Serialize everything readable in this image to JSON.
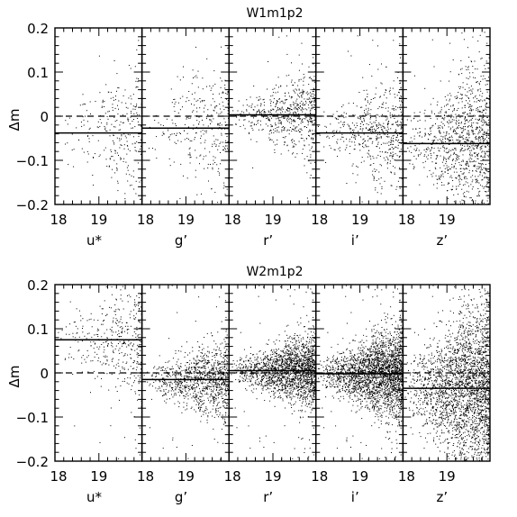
{
  "chart_data": [
    {
      "type": "scatter",
      "title": "W1m1p2",
      "ylabel": "Δm",
      "ylim": [
        -0.2,
        0.2
      ],
      "yticks": [
        -0.2,
        -0.1,
        0,
        0.1,
        0.2
      ],
      "ytick_labels": [
        "−0.2",
        "−0.1",
        "0",
        "0.1",
        "0.2"
      ],
      "xlim": [
        18,
        19.98
      ],
      "xtick_labels": [
        "18",
        "19"
      ],
      "reference_line": 0,
      "panels": [
        {
          "band": "u*",
          "offset": -0.038,
          "n_points": 280,
          "scatter": 0.055
        },
        {
          "band": "g’",
          "offset": -0.027,
          "n_points": 320,
          "scatter": 0.05
        },
        {
          "band": "r’",
          "offset": 0.003,
          "n_points": 620,
          "scatter": 0.035
        },
        {
          "band": "i’",
          "offset": -0.038,
          "n_points": 560,
          "scatter": 0.045
        },
        {
          "band": "z’",
          "offset": -0.062,
          "n_points": 1100,
          "scatter": 0.065
        }
      ]
    },
    {
      "type": "scatter",
      "title": "W2m1p2",
      "ylabel": "Δm",
      "ylim": [
        -0.2,
        0.2
      ],
      "yticks": [
        -0.2,
        -0.1,
        0,
        0.1,
        0.2
      ],
      "ytick_labels": [
        "−0.2",
        "−0.1",
        "0",
        "0.1",
        "0.2"
      ],
      "xlim": [
        18,
        19.98
      ],
      "xtick_labels": [
        "18",
        "19"
      ],
      "reference_line": 0,
      "panels": [
        {
          "band": "u*",
          "offset": 0.075,
          "n_points": 420,
          "scatter": 0.05
        },
        {
          "band": "g’",
          "offset": -0.015,
          "n_points": 1100,
          "scatter": 0.03
        },
        {
          "band": "r’",
          "offset": 0.005,
          "n_points": 2000,
          "scatter": 0.028
        },
        {
          "band": "i’",
          "offset": -0.002,
          "n_points": 2600,
          "scatter": 0.035
        },
        {
          "band": "z’",
          "offset": -0.035,
          "n_points": 2800,
          "scatter": 0.07
        }
      ]
    }
  ]
}
